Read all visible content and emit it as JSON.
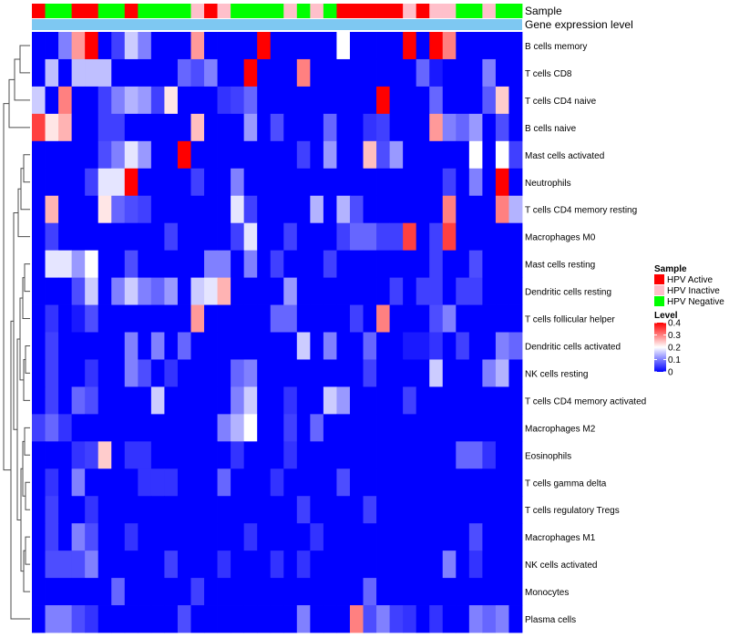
{
  "chart_data": {
    "type": "heatmap",
    "title": "",
    "annotation_tracks": [
      "Sample",
      "Gene expression level"
    ],
    "sample_groups": [
      "A",
      "N",
      "N",
      "A",
      "A",
      "N",
      "N",
      "A",
      "N",
      "N",
      "N",
      "N",
      "I",
      "A",
      "I",
      "N",
      "N",
      "N",
      "N",
      "I",
      "N",
      "I",
      "N",
      "A",
      "A",
      "A",
      "A",
      "A",
      "I",
      "A",
      "I",
      "I",
      "N",
      "N",
      "I",
      "N",
      "N"
    ],
    "sample_group_colors": {
      "A": "#ff0000",
      "I": "#ffc0cb",
      "N": "#00ff00"
    },
    "expression_level_color": "#7ec8f2",
    "rows": [
      "B cells memory",
      "T cells CD8",
      "T cells CD4 naive",
      "B cells naive",
      "Mast cells activated",
      "Neutrophils",
      "T cells CD4 memory resting",
      "Macrophages M0",
      "Mast cells resting",
      "Dendritic cells resting",
      "T cells follicular helper",
      "Dendritic cells activated",
      "NK cells resting",
      "T cells CD4 memory activated",
      "Macrophages M2",
      "Eosinophils",
      "T cells gamma delta",
      "T cells regulatory  Tregs",
      "Macrophages M1",
      "NK cells activated",
      "Monocytes",
      "Plasma cells"
    ],
    "matrix": [
      [
        0,
        0,
        0.1,
        0.28,
        0.4,
        0,
        0.05,
        0.16,
        0.1,
        0,
        0,
        0,
        0.28,
        0,
        0,
        0,
        0,
        0.4,
        0,
        0,
        0,
        0,
        0,
        0.2,
        0,
        0,
        0,
        0,
        0.4,
        0,
        0.4,
        0.3,
        0,
        0,
        0,
        0,
        0
      ],
      [
        0,
        0.15,
        0,
        0.15,
        0.15,
        0.15,
        0,
        0,
        0,
        0,
        0,
        0.08,
        0.06,
        0.1,
        0,
        0,
        0.4,
        0,
        0,
        0,
        0.3,
        0,
        0,
        0,
        0,
        0,
        0,
        0,
        0,
        0.08,
        0.02,
        0,
        0,
        0,
        0.1,
        0,
        0
      ],
      [
        0.16,
        0,
        0.3,
        0,
        0,
        0.05,
        0.1,
        0.14,
        0.12,
        0.05,
        0.22,
        0,
        0,
        0,
        0.04,
        0.05,
        0.08,
        0,
        0,
        0,
        0,
        0,
        0,
        0,
        0,
        0,
        0.4,
        0,
        0,
        0,
        0.08,
        0,
        0,
        0,
        0.07,
        0.24,
        0
      ],
      [
        0.35,
        0.22,
        0.26,
        0,
        0,
        0.05,
        0.05,
        0,
        0,
        0,
        0,
        0,
        0.25,
        0,
        0,
        0,
        0.12,
        0,
        0.06,
        0,
        0,
        0,
        0.08,
        0,
        0,
        0.04,
        0.05,
        0,
        0,
        0,
        0.28,
        0.1,
        0.08,
        0.12,
        0,
        0.06,
        0
      ],
      [
        0,
        0,
        0,
        0,
        0,
        0.06,
        0.1,
        0.18,
        0.12,
        0,
        0,
        0.4,
        0,
        0,
        0,
        0,
        0,
        0,
        0,
        0,
        0.05,
        0,
        0.12,
        0,
        0,
        0.25,
        0.06,
        0.12,
        0,
        0,
        0,
        0,
        0,
        0.2,
        0,
        0.2,
        0.05
      ],
      [
        0,
        0,
        0,
        0,
        0.05,
        0.18,
        0.18,
        0.4,
        0,
        0,
        0,
        0,
        0.05,
        0,
        0,
        0.1,
        0,
        0,
        0,
        0,
        0,
        0,
        0,
        0,
        0,
        0,
        0,
        0,
        0,
        0,
        0,
        0.05,
        0,
        0.1,
        0,
        0.4,
        0
      ],
      [
        0,
        0.26,
        0,
        0,
        0,
        0.22,
        0.08,
        0.06,
        0.05,
        0,
        0,
        0,
        0,
        0,
        0,
        0.18,
        0.05,
        0,
        0,
        0,
        0,
        0.14,
        0,
        0.14,
        0.06,
        0,
        0,
        0,
        0,
        0,
        0,
        0.3,
        0,
        0,
        0,
        0.3,
        0.14
      ],
      [
        0,
        0.05,
        0,
        0,
        0,
        0,
        0,
        0,
        0,
        0,
        0.05,
        0,
        0,
        0,
        0,
        0.05,
        0.18,
        0,
        0,
        0.05,
        0,
        0,
        0,
        0.05,
        0.08,
        0.08,
        0.05,
        0.05,
        0.35,
        0,
        0.05,
        0.35,
        0,
        0,
        0,
        0,
        0
      ],
      [
        0,
        0.18,
        0.18,
        0.12,
        0.2,
        0,
        0,
        0.06,
        0,
        0,
        0,
        0,
        0,
        0.1,
        0.1,
        0,
        0.1,
        0,
        0.05,
        0,
        0,
        0,
        0.05,
        0,
        0,
        0,
        0,
        0,
        0,
        0,
        0.05,
        0,
        0,
        0.06,
        0,
        0,
        0
      ],
      [
        0,
        0,
        0,
        0.06,
        0.16,
        0,
        0.1,
        0.16,
        0.1,
        0.08,
        0.12,
        0,
        0.16,
        0.18,
        0.26,
        0,
        0,
        0,
        0,
        0.12,
        0,
        0,
        0,
        0,
        0,
        0,
        0,
        0.05,
        0,
        0.05,
        0.05,
        0,
        0.05,
        0.05,
        0,
        0,
        0
      ],
      [
        0,
        0.04,
        0,
        0.02,
        0.06,
        0,
        0,
        0,
        0,
        0,
        0,
        0,
        0.28,
        0,
        0,
        0,
        0,
        0,
        0.08,
        0.08,
        0,
        0,
        0,
        0,
        0.05,
        0,
        0.3,
        0,
        0,
        0,
        0.06,
        0.1,
        0,
        0,
        0,
        0,
        0
      ],
      [
        0,
        0.05,
        0,
        0,
        0,
        0,
        0,
        0.1,
        0,
        0.1,
        0,
        0.08,
        0,
        0,
        0,
        0,
        0,
        0,
        0,
        0,
        0.16,
        0,
        0.1,
        0,
        0,
        0.08,
        0,
        0,
        0.02,
        0.02,
        0.04,
        0,
        0.05,
        0,
        0,
        0.1,
        0.08
      ],
      [
        0,
        0.05,
        0,
        0,
        0.04,
        0,
        0,
        0.1,
        0.06,
        0,
        0.04,
        0,
        0,
        0,
        0,
        0.08,
        0.1,
        0,
        0,
        0,
        0,
        0,
        0,
        0,
        0,
        0.05,
        0,
        0,
        0,
        0,
        0.16,
        0,
        0,
        0,
        0.1,
        0.14,
        0
      ],
      [
        0,
        0.05,
        0,
        0.08,
        0.06,
        0,
        0,
        0,
        0,
        0.16,
        0,
        0,
        0,
        0,
        0,
        0.1,
        0.16,
        0,
        0,
        0.04,
        0,
        0,
        0.16,
        0.12,
        0,
        0,
        0,
        0,
        0.05,
        0,
        0,
        0,
        0,
        0,
        0,
        0,
        0
      ],
      [
        0.05,
        0.08,
        0.04,
        0,
        0,
        0,
        0,
        0,
        0,
        0,
        0,
        0,
        0,
        0,
        0.1,
        0.14,
        0.2,
        0,
        0,
        0.05,
        0,
        0.08,
        0,
        0,
        0,
        0,
        0,
        0,
        0,
        0,
        0,
        0,
        0,
        0,
        0,
        0,
        0
      ],
      [
        0,
        0,
        0,
        0.04,
        0.05,
        0.24,
        0,
        0.04,
        0.04,
        0,
        0,
        0,
        0,
        0,
        0,
        0.04,
        0,
        0,
        0,
        0.04,
        0,
        0,
        0,
        0,
        0,
        0,
        0,
        0,
        0,
        0,
        0,
        0,
        0.08,
        0.08,
        0.04,
        0,
        0
      ],
      [
        0,
        0.04,
        0,
        0.1,
        0,
        0,
        0,
        0,
        0.04,
        0.04,
        0.04,
        0,
        0,
        0,
        0.08,
        0,
        0,
        0,
        0.04,
        0,
        0,
        0,
        0,
        0.06,
        0,
        0,
        0,
        0,
        0,
        0,
        0,
        0,
        0,
        0,
        0,
        0,
        0
      ],
      [
        0,
        0.05,
        0,
        0,
        0.04,
        0,
        0,
        0,
        0,
        0,
        0,
        0,
        0,
        0,
        0,
        0,
        0,
        0,
        0,
        0,
        0.05,
        0,
        0,
        0,
        0,
        0.05,
        0,
        0,
        0,
        0,
        0,
        0,
        0,
        0,
        0,
        0,
        0
      ],
      [
        0,
        0.05,
        0,
        0.1,
        0.06,
        0,
        0,
        0.04,
        0,
        0,
        0,
        0,
        0,
        0,
        0,
        0,
        0.04,
        0,
        0,
        0,
        0,
        0.04,
        0,
        0,
        0,
        0,
        0,
        0,
        0,
        0,
        0,
        0,
        0,
        0.06,
        0,
        0,
        0
      ],
      [
        0,
        0.06,
        0.06,
        0.06,
        0.1,
        0,
        0,
        0,
        0,
        0,
        0.05,
        0,
        0,
        0,
        0.04,
        0,
        0,
        0,
        0.04,
        0,
        0.04,
        0,
        0,
        0,
        0,
        0,
        0,
        0,
        0,
        0,
        0,
        0.1,
        0,
        0.04,
        0,
        0,
        0
      ],
      [
        0,
        0,
        0,
        0,
        0,
        0,
        0.08,
        0,
        0,
        0,
        0,
        0,
        0.05,
        0,
        0,
        0,
        0,
        0,
        0,
        0,
        0,
        0,
        0,
        0,
        0,
        0.08,
        0,
        0,
        0,
        0,
        0,
        0,
        0,
        0,
        0,
        0,
        0
      ],
      [
        0,
        0.1,
        0.1,
        0.06,
        0.04,
        0,
        0,
        0,
        0,
        0,
        0,
        0.06,
        0,
        0,
        0,
        0,
        0,
        0,
        0,
        0,
        0.1,
        0,
        0,
        0,
        0.3,
        0.06,
        0.1,
        0.05,
        0.04,
        0,
        0.04,
        0,
        0,
        0.1,
        0.08,
        0.1,
        0
      ]
    ],
    "legend_sample_title": "Sample",
    "legend_sample_entries": [
      {
        "label": "HPV Active",
        "color": "#ff0000"
      },
      {
        "label": "HPV Inactive",
        "color": "#ffc0cb"
      },
      {
        "label": "HPV Negative",
        "color": "#00ff00"
      }
    ],
    "legend_level_title": "Level",
    "legend_level_ticks": [
      "0.4",
      "0.3",
      "0.2",
      "0.1",
      "0"
    ],
    "legend_level_tick_values": [
      0.4,
      0.3,
      0.2,
      0.1,
      0
    ],
    "color_scale": {
      "min": 0,
      "mid": 0.2,
      "max": 0.4,
      "low": "#0000ff",
      "midcolor": "#ffffff",
      "high": "#ff0000"
    }
  }
}
